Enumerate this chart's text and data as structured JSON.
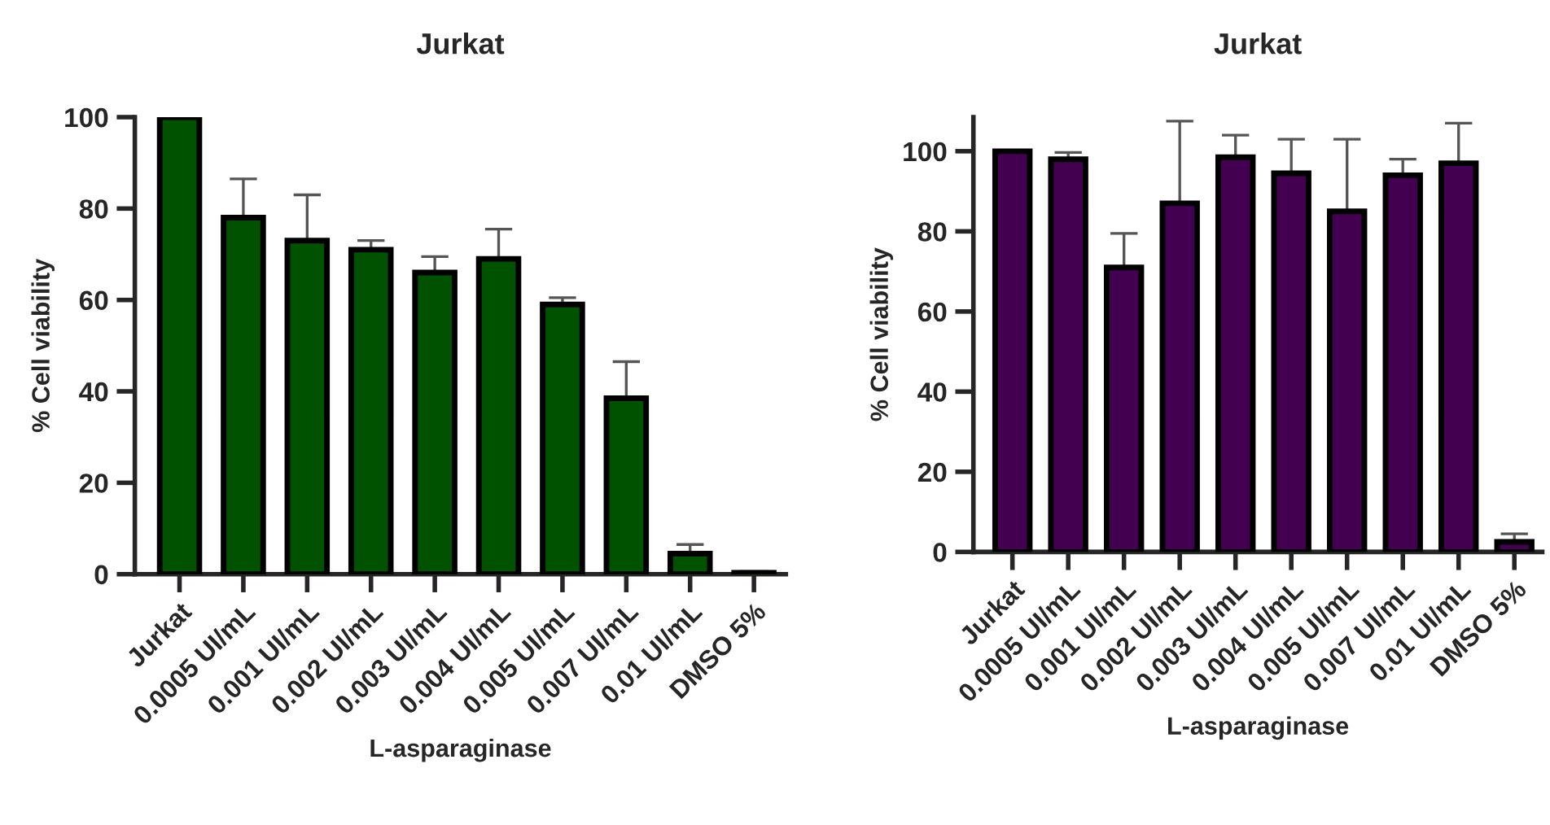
{
  "chart_data": [
    {
      "type": "bar",
      "title": "Jurkat",
      "xlabel": "L-asparaginase",
      "ylabel": "% Cell viability",
      "categories": [
        "Jurkat",
        "0.0005 UI/mL",
        "0.001 UI/mL",
        "0.002 UI/mL",
        "0.003 UI/mL",
        "0.004 UI/mL",
        "0.005 UI/mL",
        "0.007 UI/mL",
        "0.01 UI/mL",
        "DMSO 5%"
      ],
      "values": [
        100,
        78,
        73,
        71,
        66,
        69,
        59,
        38.5,
        4.5,
        0.3
      ],
      "errors": [
        null,
        [
          78,
          86.5
        ],
        [
          73,
          83
        ],
        [
          71,
          73
        ],
        [
          66,
          69.5
        ],
        [
          69,
          75.5
        ],
        [
          59,
          60.5
        ],
        [
          38.5,
          46.5
        ],
        [
          4.5,
          6.5
        ],
        [
          0.3,
          0.6
        ]
      ],
      "color": "#005200",
      "ylim": [
        0,
        100
      ],
      "yticks": [
        0,
        20,
        40,
        60,
        80,
        100
      ]
    },
    {
      "type": "bar",
      "title": "Jurkat",
      "xlabel": "L-asparaginase",
      "ylabel": "% Cell viability",
      "categories": [
        "Jurkat",
        "0.0005 UI/mL",
        "0.001 UI/mL",
        "0.002 UI/mL",
        "0.003 UI/mL",
        "0.004 UI/mL",
        "0.005 UI/mL",
        "0.007 UI/mL",
        "0.01 UI/mL",
        "DMSO 5%"
      ],
      "values": [
        100,
        98,
        71,
        87,
        98.5,
        94.5,
        85,
        94,
        97,
        2.5
      ],
      "errors": [
        null,
        [
          98,
          99.7
        ],
        [
          71,
          79.5
        ],
        [
          87,
          107.5
        ],
        [
          98.5,
          104
        ],
        [
          94.5,
          103
        ],
        [
          85,
          103
        ],
        [
          94,
          98
        ],
        [
          97,
          107
        ],
        [
          2.5,
          4.5
        ]
      ],
      "color": "#440050",
      "ylim": [
        0,
        108.5
      ],
      "yticks": [
        0,
        20,
        40,
        60,
        80,
        100
      ]
    }
  ]
}
